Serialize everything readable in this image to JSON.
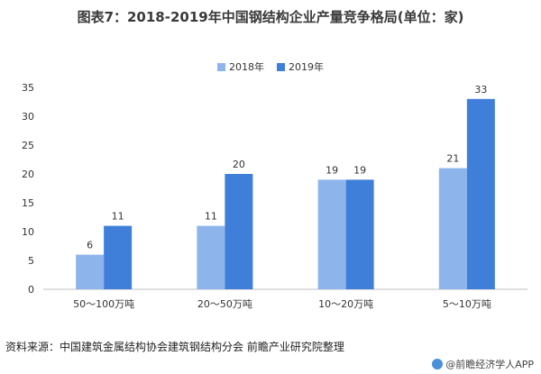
{
  "title": "图表7：2018-2019年中国钢结构企业产量竞争格局(单位：家)",
  "source": "资料来源：中国建筑金属结构协会建筑钢结构分会 前瞻产业研究院整理",
  "brand": "@前瞻经济学人APP",
  "colors": {
    "s2018": "#8db5ec",
    "s2019": "#3f7fd9"
  },
  "chart_data": {
    "type": "bar",
    "categories": [
      "50～100万吨",
      "20～50万吨",
      "10～20万吨",
      "5～10万吨"
    ],
    "series": [
      {
        "name": "2018年",
        "values": [
          6,
          11,
          19,
          21
        ]
      },
      {
        "name": "2019年",
        "values": [
          11,
          20,
          19,
          33
        ]
      }
    ],
    "ylim": [
      0,
      35
    ],
    "yticks": [
      0,
      5,
      10,
      15,
      20,
      25,
      30,
      35
    ],
    "legend_position": "top-center",
    "grid": false
  }
}
